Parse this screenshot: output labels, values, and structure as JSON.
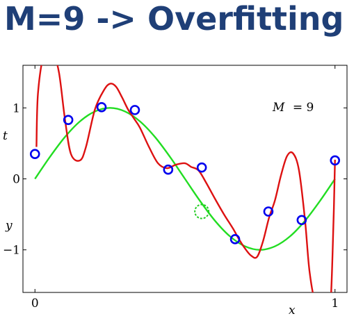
{
  "title": "M=9 -> Overfitting",
  "chart_data": {
    "type": "line",
    "annotation": {
      "prefix": "M",
      "suffix": "= 9"
    },
    "xlabel": "x",
    "ylabel": "t",
    "extra_label": "y",
    "xlim": [
      -0.04,
      1.04
    ],
    "ylim": [
      -1.6,
      1.6
    ],
    "xticks": [
      0,
      1
    ],
    "yticks": [
      1,
      0,
      -1
    ],
    "colors": {
      "target": "#22dd22",
      "fit": "#dd1111",
      "points": "#0000ee",
      "outlier": "#22cc22"
    },
    "series": [
      {
        "role": "target",
        "x": [
          0,
          0.05,
          0.1,
          0.15,
          0.2,
          0.25,
          0.3,
          0.35,
          0.4,
          0.45,
          0.5,
          0.55,
          0.6,
          0.65,
          0.7,
          0.75,
          0.8,
          0.85,
          0.9,
          0.95,
          1.0
        ],
        "y": [
          0,
          0.31,
          0.59,
          0.81,
          0.95,
          1.0,
          0.95,
          0.81,
          0.59,
          0.31,
          0,
          -0.31,
          -0.59,
          -0.81,
          -0.95,
          -1.0,
          -0.95,
          -0.81,
          -0.59,
          -0.31,
          0
        ]
      },
      {
        "role": "fit",
        "x": [
          0.005,
          0.01,
          0.03,
          0.06,
          0.08,
          0.1,
          0.12,
          0.15,
          0.17,
          0.2,
          0.23,
          0.25,
          0.27,
          0.29,
          0.31,
          0.33,
          0.35,
          0.38,
          0.41,
          0.44,
          0.47,
          0.5,
          0.52,
          0.545,
          0.57,
          0.6,
          0.63,
          0.66,
          0.68,
          0.7,
          0.72,
          0.74,
          0.76,
          0.78,
          0.8,
          0.82,
          0.84,
          0.86,
          0.88,
          0.9,
          0.915,
          0.935,
          0.955,
          0.97,
          0.985,
          0.995,
          1.0
        ],
        "y": [
          0.45,
          1.2,
          1.75,
          1.75,
          1.5,
          0.84,
          0.35,
          0.26,
          0.45,
          0.98,
          1.25,
          1.34,
          1.3,
          1.15,
          0.98,
          0.85,
          0.72,
          0.45,
          0.22,
          0.15,
          0.2,
          0.22,
          0.17,
          0.12,
          -0.05,
          -0.28,
          -0.5,
          -0.7,
          -0.85,
          -0.98,
          -1.08,
          -1.1,
          -0.88,
          -0.55,
          -0.3,
          0.05,
          0.32,
          0.36,
          0.12,
          -0.58,
          -1.3,
          -1.75,
          -1.75,
          -1.75,
          -1.75,
          -0.6,
          0.27
        ]
      }
    ],
    "points": {
      "x": [
        0.0,
        0.111,
        0.222,
        0.333,
        0.444,
        0.556,
        0.667,
        0.778,
        0.889,
        1.0
      ],
      "y": [
        0.35,
        0.83,
        1.01,
        0.97,
        0.13,
        0.16,
        -0.85,
        -0.46,
        -0.58,
        0.26
      ]
    },
    "outlier": {
      "x": 0.556,
      "y": -0.46
    }
  }
}
